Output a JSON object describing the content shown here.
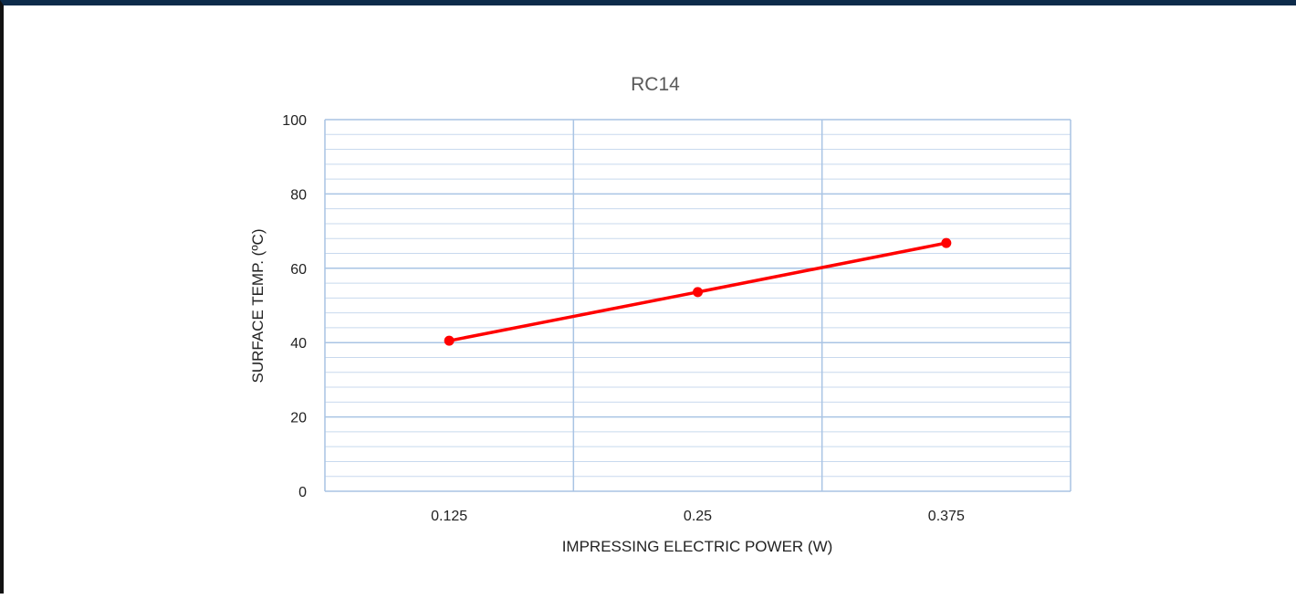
{
  "chart_data": {
    "type": "line",
    "title": "RC14",
    "xlabel": "IMPRESSING ELECTRIC POWER (W)",
    "ylabel": "SURFACE TEMP. (ºC)",
    "categories": [
      "0.125",
      "0.25",
      "0.375"
    ],
    "series": [
      {
        "values": [
          40.5,
          53.6,
          66.8
        ],
        "color": "#ff0000"
      }
    ],
    "ylim": [
      0,
      100
    ],
    "yticks": [
      0,
      20,
      40,
      60,
      80,
      100
    ],
    "y_minor_step": 4,
    "grid": true,
    "colors": {
      "grid_major": "#a9c4e4",
      "grid_minor": "#c8d9ee",
      "line": "#ff0000"
    }
  }
}
